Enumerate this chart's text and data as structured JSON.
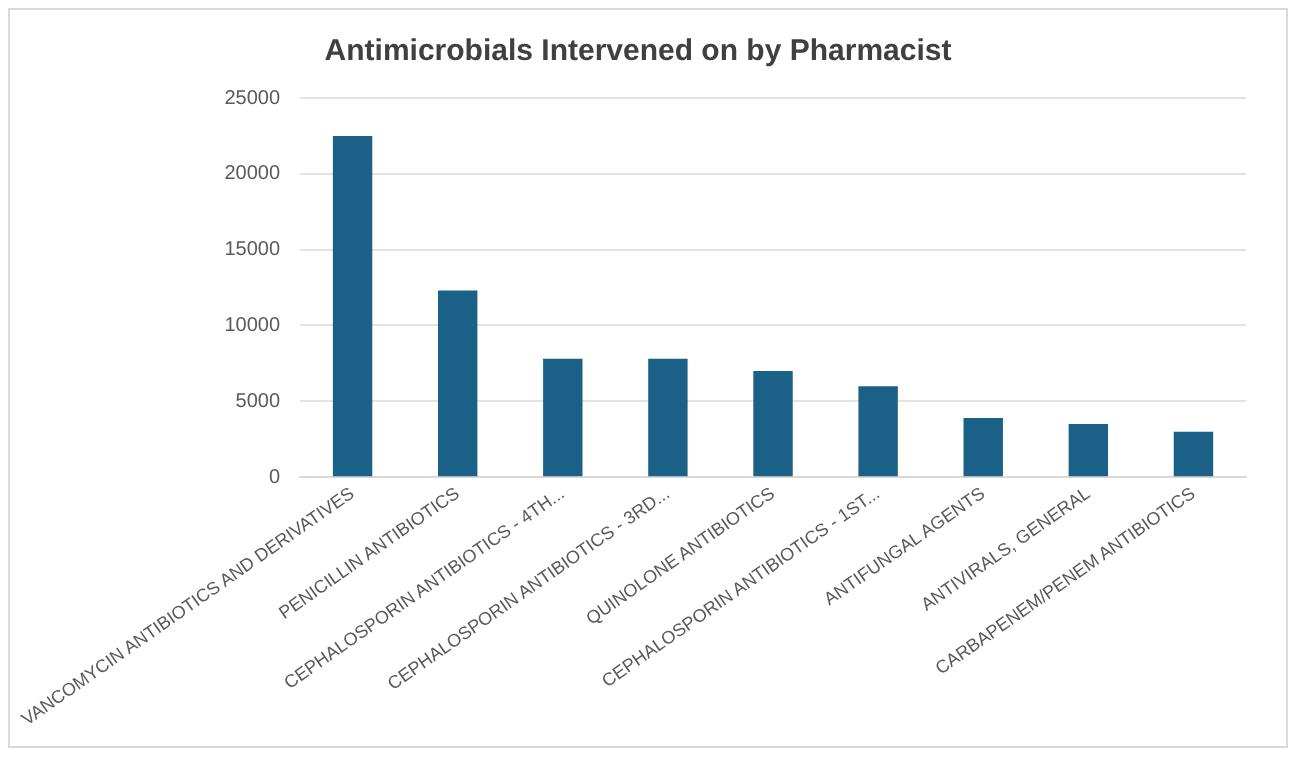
{
  "chart_data": {
    "type": "bar",
    "title": "Antimicrobials Intervened on by Pharmacist",
    "categories": [
      "VANCOMYCIN ANTIBIOTICS AND DERIVATIVES",
      "PENICILLIN ANTIBIOTICS",
      "CEPHALOSPORIN ANTIBIOTICS - 4TH...",
      "CEPHALOSPORIN ANTIBIOTICS - 3RD...",
      "QUINOLONE ANTIBIOTICS",
      "CEPHALOSPORIN ANTIBIOTICS - 1ST...",
      "ANTIFUNGAL AGENTS",
      "ANTIVIRALS, GENERAL",
      "CARBAPENEM/PENEM ANTIBIOTICS"
    ],
    "values": [
      22500,
      12300,
      7800,
      7800,
      7000,
      6000,
      3900,
      3500,
      3000
    ],
    "color": "#1b6187",
    "ylim": [
      0,
      25000
    ],
    "yticks": [
      0,
      5000,
      10000,
      15000,
      20000,
      25000
    ],
    "grid": "y",
    "legend": false
  }
}
